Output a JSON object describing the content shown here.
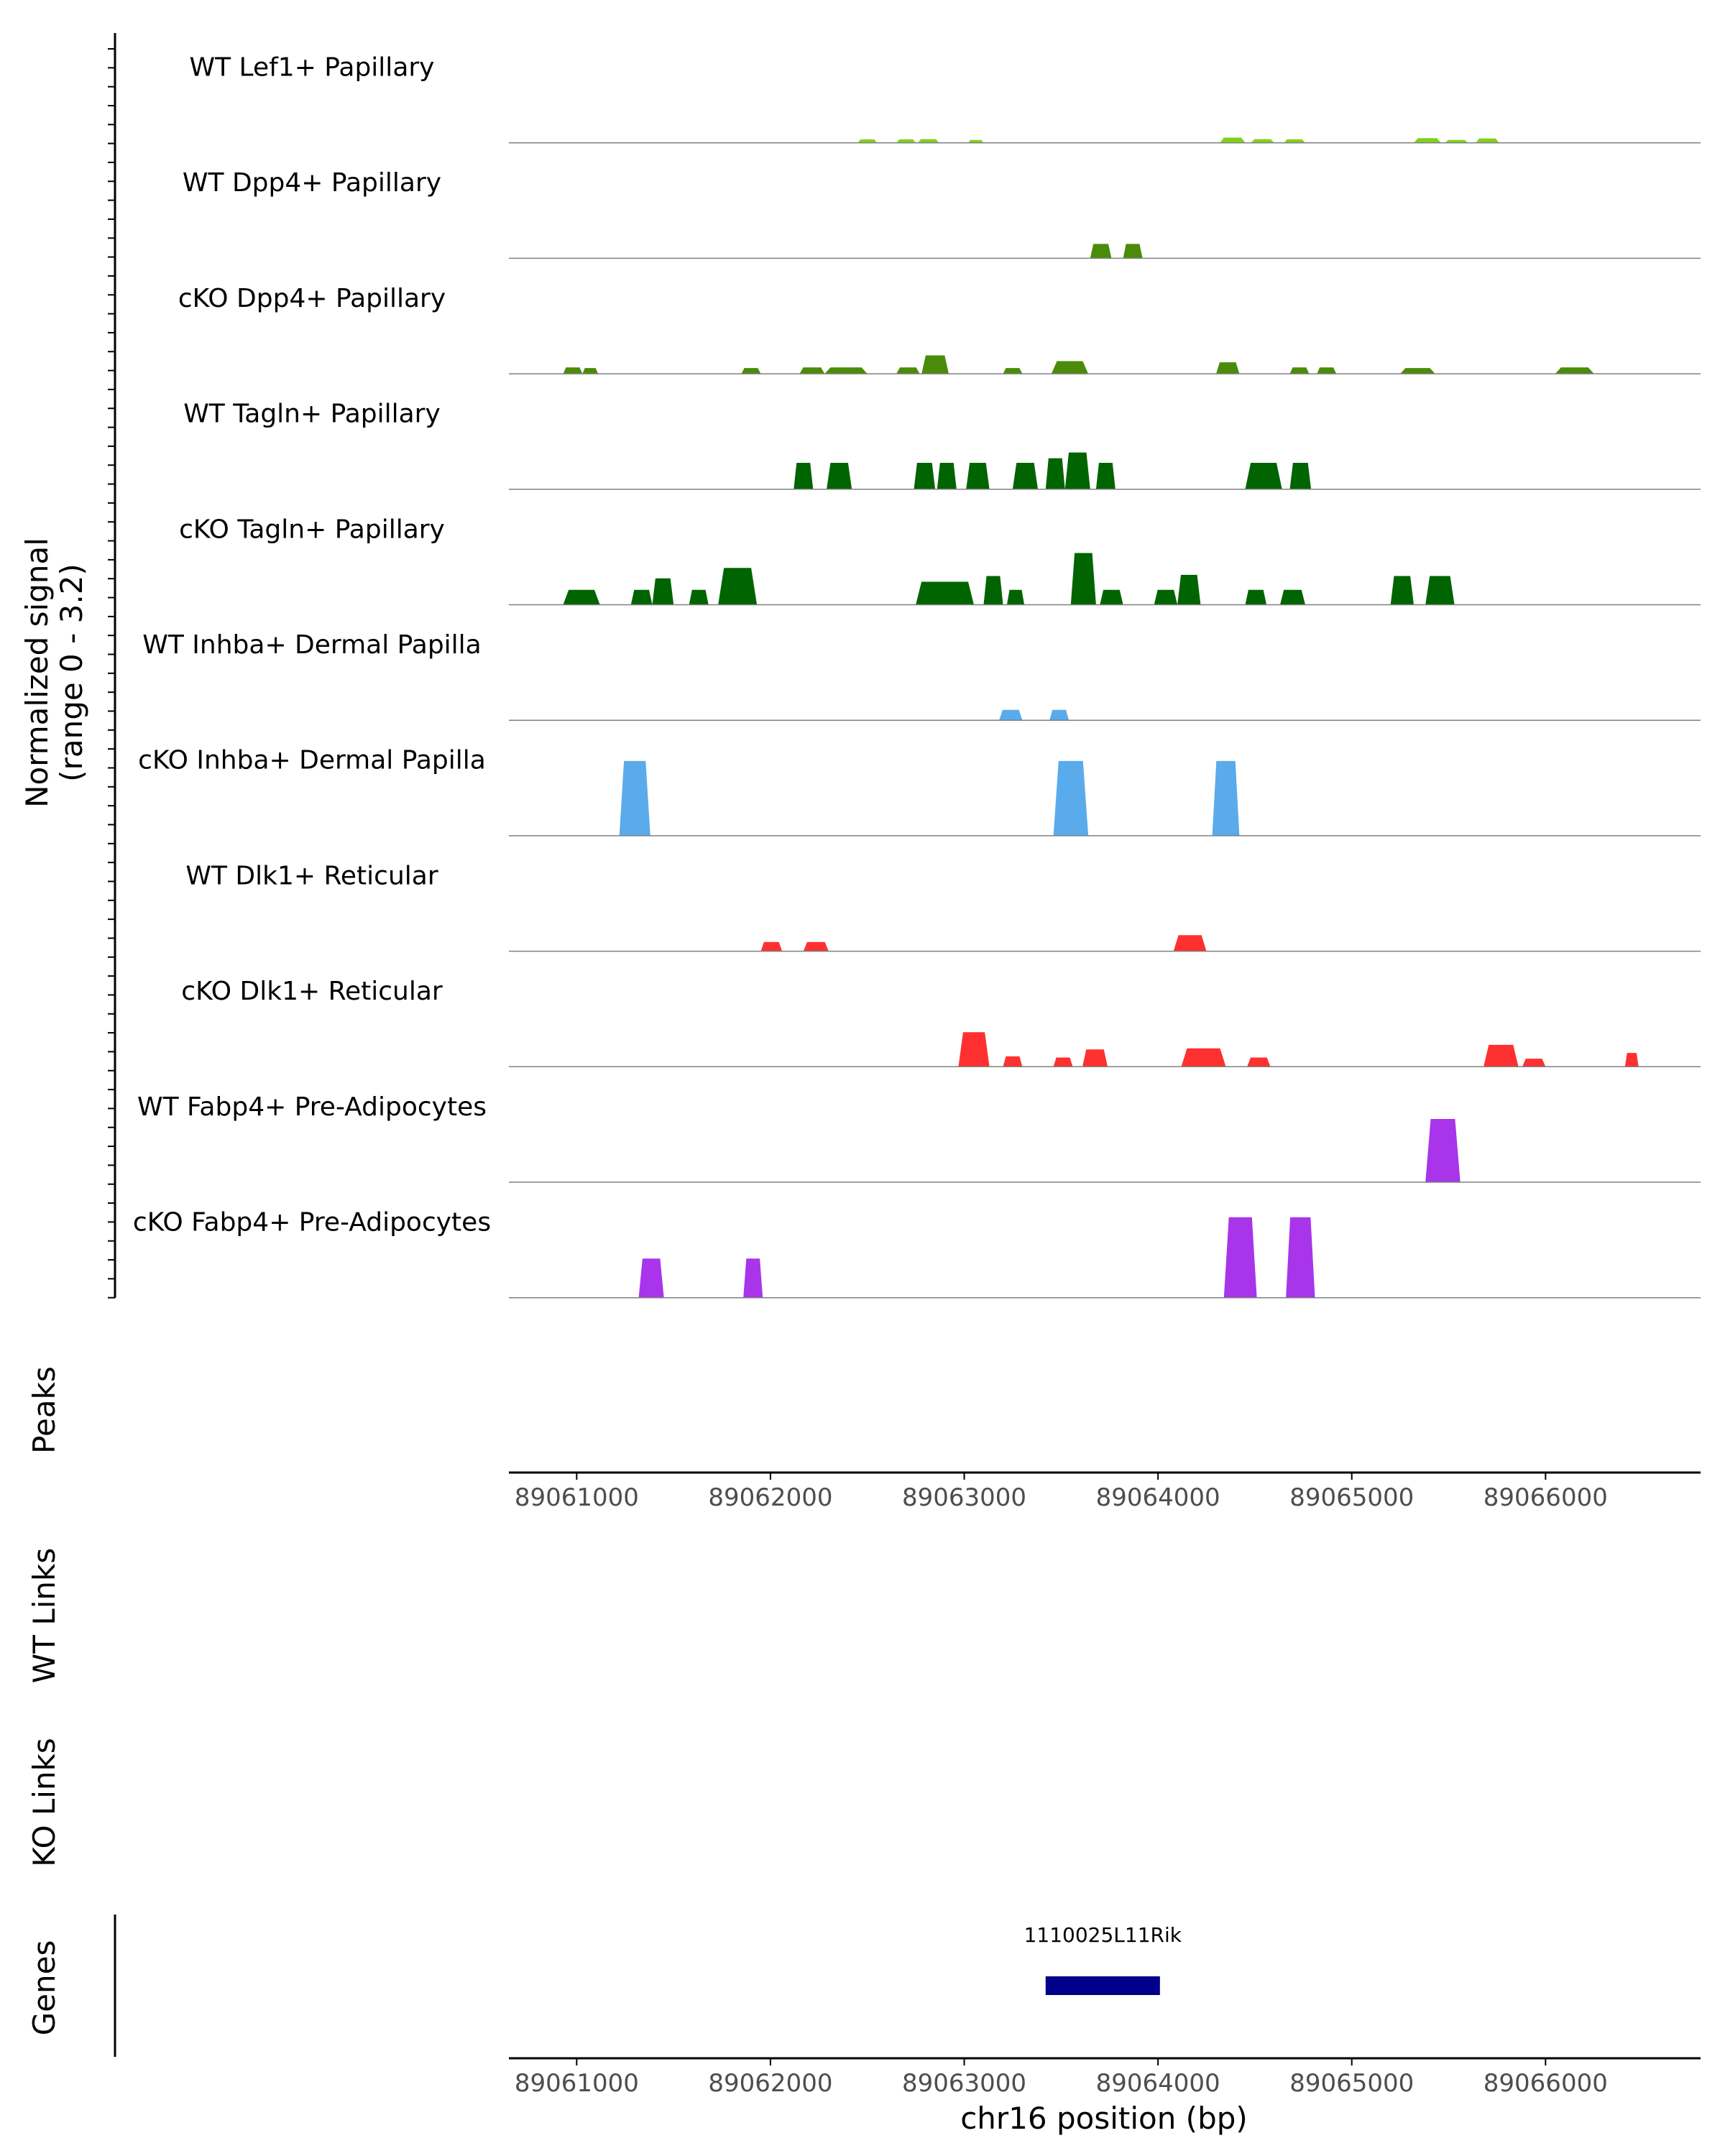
{
  "chart_data": {
    "type": "area",
    "title": "",
    "chromosome": "chr16",
    "xlabel": "chr16 position (bp)",
    "xlim": [
      89060650,
      89066800
    ],
    "x_ticks": [
      89061000,
      89062000,
      89063000,
      89064000,
      89065000,
      89066000
    ],
    "x_tick_labels": [
      "89061000",
      "89062000",
      "89063000",
      "89064000",
      "89065000",
      "89066000"
    ],
    "ylabel_line1": "Normalized signal",
    "ylabel_line2": "(range 0 - 3.2)",
    "ylim": [
      0,
      3.2
    ],
    "grid": false,
    "legend": "none",
    "track_labels": {
      "peaks": "Peaks",
      "wt_links": "WT Links",
      "ko_links": "KO Links",
      "genes": "Genes"
    },
    "colors": {
      "lef1": "#7fd11c",
      "dpp4": "#4a8c09",
      "tagln": "#006400",
      "inhba": "#5aabeb",
      "dlk1": "#ff3030",
      "fabp4": "#a835ea",
      "gene": "#00008b",
      "baseline": "#808080",
      "axis": "#000000"
    },
    "series": [
      {
        "name": "WT Lef1+ Papillary",
        "color": "#7fd11c",
        "peaks": [
          [
            89062450,
            89062550,
            0.3
          ],
          [
            89062650,
            89062750,
            0.3
          ],
          [
            89062760,
            89062870,
            0.32
          ],
          [
            89063020,
            89063100,
            0.25
          ],
          [
            89064320,
            89064450,
            0.45
          ],
          [
            89064480,
            89064600,
            0.32
          ],
          [
            89064650,
            89064760,
            0.3
          ],
          [
            89065320,
            89065460,
            0.4
          ],
          [
            89065480,
            89065600,
            0.25
          ],
          [
            89065640,
            89065760,
            0.38
          ]
        ]
      },
      {
        "name": "WT Dpp4+ Papillary",
        "color": "#4a8c09",
        "peaks": [
          [
            89063650,
            89063760,
            1.25
          ],
          [
            89063820,
            89063920,
            1.25
          ]
        ]
      },
      {
        "name": "cKO Dpp4+ Papillary",
        "color": "#4a8c09",
        "peaks": [
          [
            89060930,
            89061030,
            0.55
          ],
          [
            89061030,
            89061110,
            0.5
          ],
          [
            89061850,
            89061950,
            0.5
          ],
          [
            89062150,
            89062280,
            0.55
          ],
          [
            89062280,
            89062500,
            0.55
          ],
          [
            89062650,
            89062770,
            0.55
          ],
          [
            89062780,
            89062920,
            1.6
          ],
          [
            89063200,
            89063300,
            0.5
          ],
          [
            89063450,
            89063640,
            1.1
          ],
          [
            89064300,
            89064420,
            1.0
          ],
          [
            89064680,
            89064780,
            0.55
          ],
          [
            89064820,
            89064920,
            0.55
          ],
          [
            89065250,
            89065430,
            0.5
          ],
          [
            89066050,
            89066250,
            0.55
          ]
        ]
      },
      {
        "name": "WT Tagln+ Papillary",
        "color": "#006400",
        "peaks": [
          [
            89062120,
            89062220,
            2.3
          ],
          [
            89062290,
            89062420,
            2.3
          ],
          [
            89062740,
            89062850,
            2.3
          ],
          [
            89062860,
            89062960,
            2.3
          ],
          [
            89063010,
            89063130,
            2.3
          ],
          [
            89063250,
            89063380,
            2.3
          ],
          [
            89063420,
            89063520,
            2.7
          ],
          [
            89063520,
            89063650,
            3.2
          ],
          [
            89063680,
            89063780,
            2.3
          ],
          [
            89064450,
            89064640,
            2.3
          ],
          [
            89064680,
            89064790,
            2.3
          ]
        ]
      },
      {
        "name": "cKO Tagln+ Papillary",
        "color": "#006400",
        "peaks": [
          [
            89060930,
            89061120,
            1.3
          ],
          [
            89061280,
            89061390,
            1.3
          ],
          [
            89061390,
            89061500,
            2.3
          ],
          [
            89061580,
            89061680,
            1.3
          ],
          [
            89061730,
            89061930,
            3.2
          ],
          [
            89062750,
            89063050,
            2.0
          ],
          [
            89063100,
            89063200,
            2.5
          ],
          [
            89063220,
            89063310,
            1.3
          ],
          [
            89063550,
            89063680,
            4.5
          ],
          [
            89063700,
            89063820,
            1.3
          ],
          [
            89063980,
            89064100,
            1.3
          ],
          [
            89064100,
            89064220,
            2.6
          ],
          [
            89064450,
            89064560,
            1.3
          ],
          [
            89064630,
            89064760,
            1.3
          ],
          [
            89065200,
            89065320,
            2.5
          ],
          [
            89065380,
            89065530,
            2.5
          ]
        ]
      },
      {
        "name": "WT Inhba+ Dermal Papilla",
        "color": "#5aabeb",
        "peaks": [
          [
            89063180,
            89063300,
            0.9
          ],
          [
            89063440,
            89063540,
            0.9
          ]
        ]
      },
      {
        "name": "cKO Inhba+ Dermal Papilla",
        "color": "#5aabeb",
        "peaks": [
          [
            89061220,
            89061380,
            6.5
          ],
          [
            89063460,
            89063640,
            6.5
          ],
          [
            89064280,
            89064420,
            6.5
          ]
        ]
      },
      {
        "name": "WT Dlk1+ Reticular",
        "color": "#ff3030",
        "peaks": [
          [
            89061950,
            89062060,
            0.8
          ],
          [
            89062170,
            89062300,
            0.8
          ],
          [
            89064080,
            89064250,
            1.4
          ]
        ]
      },
      {
        "name": "cKO Dlk1+ Reticular",
        "color": "#ff3030",
        "peaks": [
          [
            89062970,
            89063130,
            3.0
          ],
          [
            89063200,
            89063300,
            0.9
          ],
          [
            89063460,
            89063560,
            0.8
          ],
          [
            89063610,
            89063740,
            1.5
          ],
          [
            89064120,
            89064350,
            1.6
          ],
          [
            89064460,
            89064580,
            0.8
          ],
          [
            89065680,
            89065860,
            1.9
          ],
          [
            89065880,
            89066000,
            0.7
          ],
          [
            89066410,
            89066480,
            1.2
          ]
        ]
      },
      {
        "name": "WT Fabp4+ Pre-Adipocytes",
        "color": "#a835ea",
        "peaks": [
          [
            89065380,
            89065560,
            5.5
          ]
        ]
      },
      {
        "name": "cKO Fabp4+ Pre-Adipocytes",
        "color": "#a835ea",
        "peaks": [
          [
            89061320,
            89061450,
            3.4
          ],
          [
            89061860,
            89061960,
            3.4
          ],
          [
            89064340,
            89064510,
            7.0
          ],
          [
            89064660,
            89064810,
            7.0
          ]
        ]
      }
    ],
    "genes": [
      {
        "name": "1110025L11Rik",
        "start": 89063420,
        "end": 89064010,
        "strand": "+"
      }
    ]
  }
}
